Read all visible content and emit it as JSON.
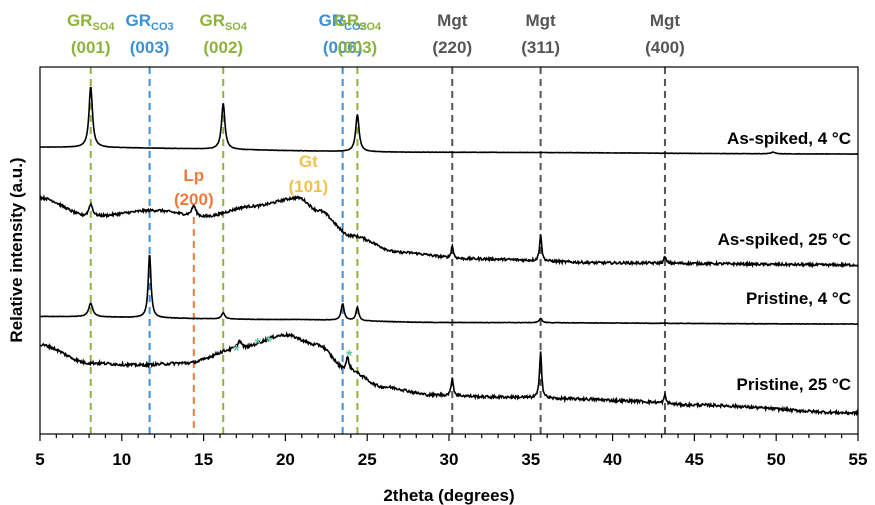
{
  "chart_data": {
    "type": "line",
    "xlabel": "2theta (degrees)",
    "ylabel": "Relative intensity (a.u.)",
    "xlim": [
      5,
      55
    ],
    "x_ticks": [
      5,
      10,
      15,
      20,
      25,
      30,
      35,
      40,
      45,
      50,
      55
    ],
    "grid": false,
    "reference_lines": [
      {
        "phase": "GR",
        "sub": "SO4",
        "hkl": "(001)",
        "x": 8.1,
        "color": "#8db33c"
      },
      {
        "phase": "GR",
        "sub": "CO3",
        "hkl": "(003)",
        "x": 11.7,
        "color": "#3d8fd6"
      },
      {
        "phase": "GR",
        "sub": "SO4",
        "hkl": "(002)",
        "x": 16.2,
        "color": "#8db33c"
      },
      {
        "phase": "GR",
        "sub": "CO3",
        "hkl": "(006)",
        "x": 23.5,
        "color": "#3d8fd6"
      },
      {
        "phase": "GR",
        "sub": "SO4",
        "hkl": "(003)",
        "x": 24.4,
        "color": "#8db33c"
      },
      {
        "phase": "Mgt",
        "sub": "",
        "hkl": "(220)",
        "x": 30.2,
        "color": "#555555"
      },
      {
        "phase": "Mgt",
        "sub": "",
        "hkl": "(311)",
        "x": 35.6,
        "color": "#555555"
      },
      {
        "phase": "Mgt",
        "sub": "",
        "hkl": "(400)",
        "x": 43.2,
        "color": "#555555"
      }
    ],
    "lp_line": {
      "phase": "Lp",
      "hkl": "(200)",
      "x": 14.4,
      "color": "#f07a3c"
    },
    "gt_label": {
      "phase": "Gt",
      "hkl": "(101)",
      "x": 21.4,
      "color": "#f2c14e"
    },
    "series": [
      {
        "name": "As-spiked, 4 °C",
        "baseline": [
          [
            5,
            0.4
          ],
          [
            30,
            0.1
          ],
          [
            55,
            0.0
          ]
        ],
        "peaks": [
          [
            8.1,
            3.6,
            0.25
          ],
          [
            16.2,
            2.7,
            0.25
          ],
          [
            24.4,
            2.2,
            0.25
          ],
          [
            49.8,
            0.1,
            0.3
          ]
        ],
        "noise": 0.02
      },
      {
        "name": "As-spiked, 25 °C",
        "baseline": [
          [
            5,
            3.2
          ],
          [
            8,
            2.3
          ],
          [
            12,
            2.6
          ],
          [
            15,
            2.3
          ],
          [
            18,
            2.8
          ],
          [
            20.8,
            3.2
          ],
          [
            22,
            2.6
          ],
          [
            24,
            1.4
          ],
          [
            27,
            0.6
          ],
          [
            31,
            0.3
          ],
          [
            40,
            0.1
          ],
          [
            55,
            0.0
          ]
        ],
        "peaks": [
          [
            8.1,
            0.6,
            0.3
          ],
          [
            14.4,
            0.5,
            0.3
          ],
          [
            30.2,
            0.6,
            0.15
          ],
          [
            35.6,
            1.3,
            0.15
          ],
          [
            43.2,
            0.3,
            0.15
          ]
        ],
        "noise": 0.12
      },
      {
        "name": "Pristine, 4 °C",
        "baseline": [
          [
            5,
            0.5
          ],
          [
            20,
            0.3
          ],
          [
            30,
            0.1
          ],
          [
            55,
            0.0
          ]
        ],
        "peaks": [
          [
            8.1,
            0.9,
            0.3
          ],
          [
            11.7,
            4.3,
            0.2
          ],
          [
            16.2,
            0.4,
            0.25
          ],
          [
            23.5,
            1.1,
            0.22
          ],
          [
            24.4,
            0.9,
            0.2
          ],
          [
            35.6,
            0.3,
            0.2
          ]
        ],
        "noise": 0.03
      },
      {
        "name": "Pristine, 25 °C",
        "baseline": [
          [
            5,
            3.4
          ],
          [
            8,
            2.5
          ],
          [
            11,
            2.4
          ],
          [
            14,
            2.5
          ],
          [
            17,
            3.2
          ],
          [
            20,
            3.9
          ],
          [
            22,
            3.4
          ],
          [
            23.7,
            2.2
          ],
          [
            26,
            1.3
          ],
          [
            29,
            0.9
          ],
          [
            33,
            0.8
          ],
          [
            38,
            0.7
          ],
          [
            41,
            0.6
          ],
          [
            45,
            0.4
          ],
          [
            55,
            0.0
          ]
        ],
        "peaks": [
          [
            17.2,
            0.4,
            0.3
          ],
          [
            23.8,
            0.6,
            0.2
          ],
          [
            30.2,
            0.9,
            0.15
          ],
          [
            35.6,
            2.4,
            0.15
          ],
          [
            43.2,
            0.4,
            0.15
          ]
        ],
        "noise": 0.14
      }
    ],
    "asterisks": [
      {
        "label": "*",
        "x": 17.0,
        "color": "#6bc4a8"
      },
      {
        "label": "*",
        "x": 18.3,
        "color": "#6bc4a8"
      },
      {
        "label": "*",
        "x": 19.0,
        "color": "#6bc4a8"
      },
      {
        "label": "*",
        "x": 23.9,
        "color": "#6bc4a8"
      }
    ]
  }
}
